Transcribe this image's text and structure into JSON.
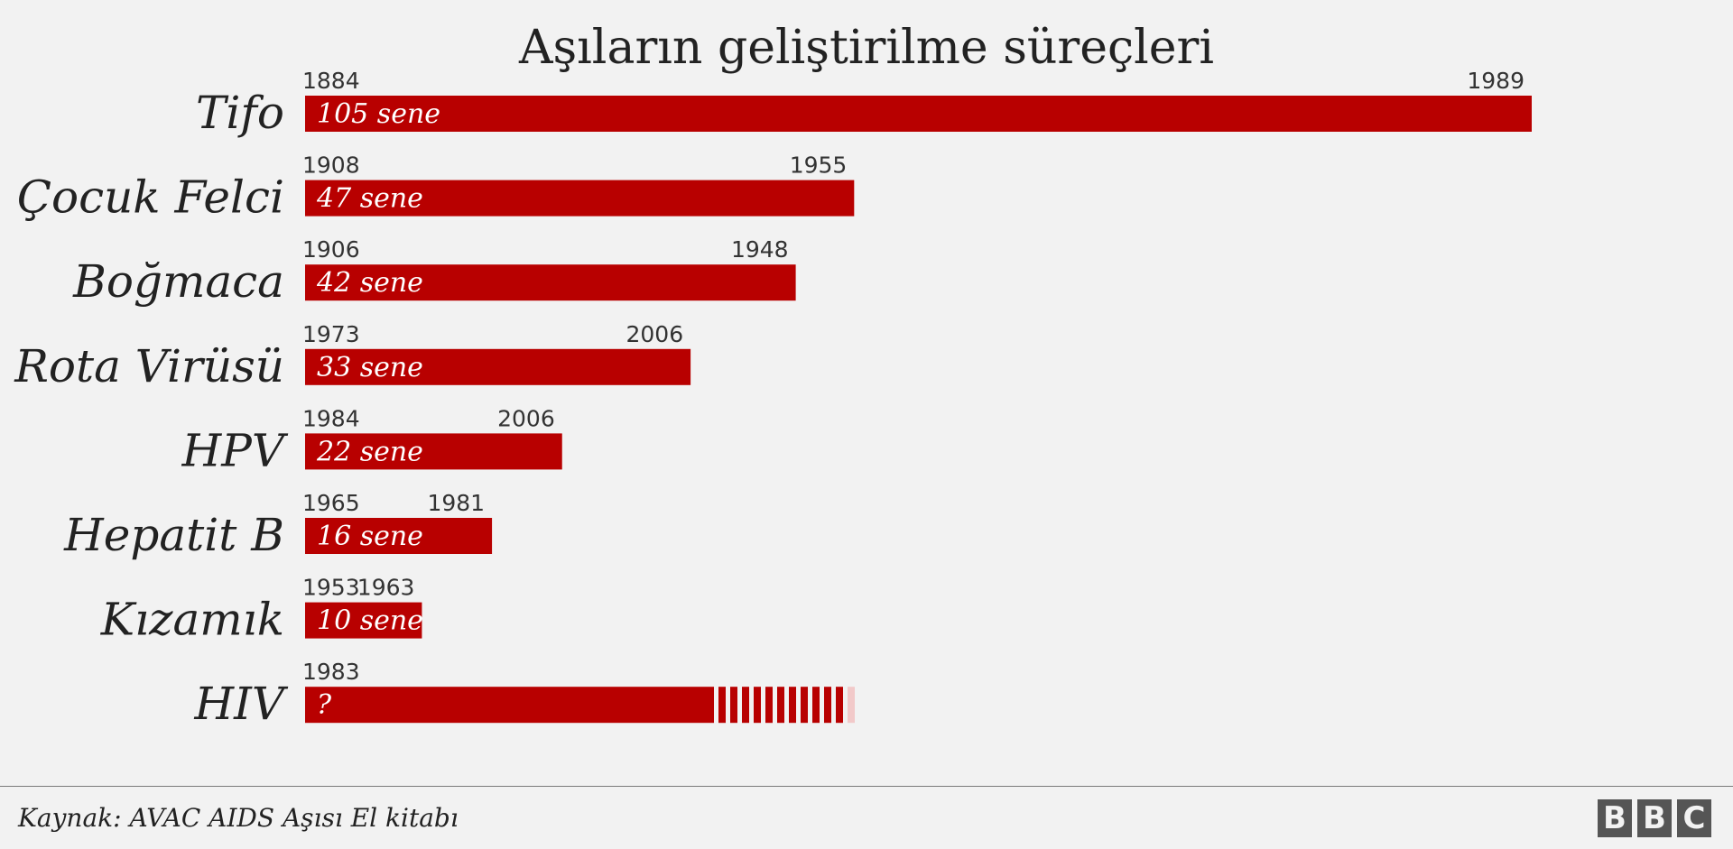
{
  "chart_data": {
    "type": "bar",
    "orientation": "horizontal",
    "title": "Aşıların geliştirilme süreçleri",
    "categories": [
      "Tifo",
      "Çocuk Felci",
      "Boğmaca",
      "Rota Virüsü",
      "HPV",
      "Hepatit B",
      "Kızamık",
      "HIV"
    ],
    "values": [
      105,
      47,
      42,
      33,
      22,
      16,
      10,
      null
    ],
    "bars": [
      {
        "category": "Tifo",
        "start_year": "1884",
        "end_year": "1989",
        "duration": 105,
        "label": "105 sene"
      },
      {
        "category": "Çocuk Felci",
        "start_year": "1908",
        "end_year": "1955",
        "duration": 47,
        "label": "47 sene"
      },
      {
        "category": "Boğmaca",
        "start_year": "1906",
        "end_year": "1948",
        "duration": 42,
        "label": "42 sene"
      },
      {
        "category": "Rota Virüsü",
        "start_year": "1973",
        "end_year": "2006",
        "duration": 33,
        "label": "33 sene"
      },
      {
        "category": "HPV",
        "start_year": "1984",
        "end_year": "2006",
        "duration": 22,
        "label": "22 sene"
      },
      {
        "category": "Hepatit B",
        "start_year": "1965",
        "end_year": "1981",
        "duration": 16,
        "label": "16 sene"
      },
      {
        "category": "Kızamık",
        "start_year": "1953",
        "end_year": "1963",
        "duration": 10,
        "label": "10 sene"
      },
      {
        "category": "HIV",
        "start_year": "1983",
        "end_year": "",
        "duration": null,
        "label": "?",
        "ongoing": true,
        "elapsed_years": 35,
        "fade_years": 12
      }
    ],
    "xlim": [
      0,
      105
    ],
    "xlabel": "",
    "ylabel": "",
    "grid": false,
    "legend": "none",
    "bar_color": "#b80000",
    "fade_color": "#f2c9c9"
  },
  "footer": {
    "source": "Kaynak: AVAC AIDS Aşısı El kitabı",
    "logo_letters": [
      "B",
      "B",
      "C"
    ]
  }
}
